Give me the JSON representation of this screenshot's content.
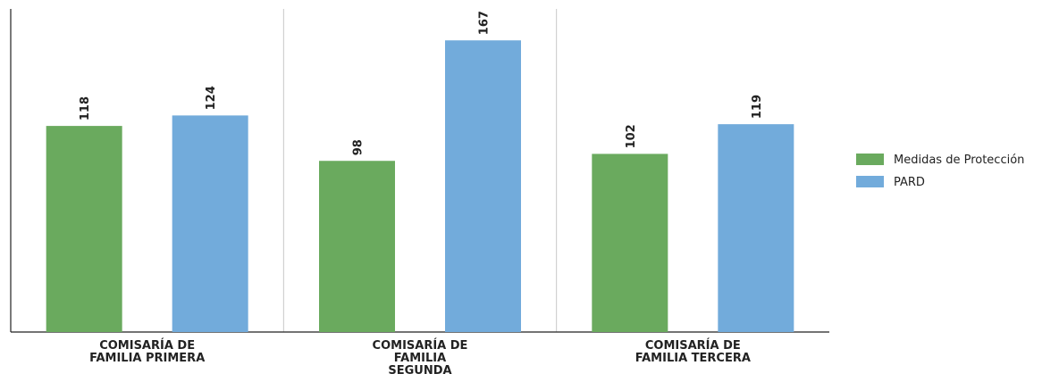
{
  "chart_data": {
    "type": "bar",
    "categories": [
      [
        "COMISARÍA DE",
        "FAMILIA PRIMERA"
      ],
      [
        "COMISARÍA DE",
        "FAMILIA",
        "SEGUNDA"
      ],
      [
        "COMISARÍA DE",
        "FAMILIA TERCERA"
      ]
    ],
    "series": [
      {
        "name": "Medidas de Protección",
        "values": [
          118,
          98,
          102
        ],
        "color": "#6aaa5e"
      },
      {
        "name": "PARD",
        "values": [
          124,
          167,
          119
        ],
        "color": "#72abdb"
      }
    ],
    "ylim": [
      0,
      185
    ],
    "grid": false,
    "legend_position": "right",
    "title": "",
    "xlabel": "",
    "ylabel": ""
  }
}
